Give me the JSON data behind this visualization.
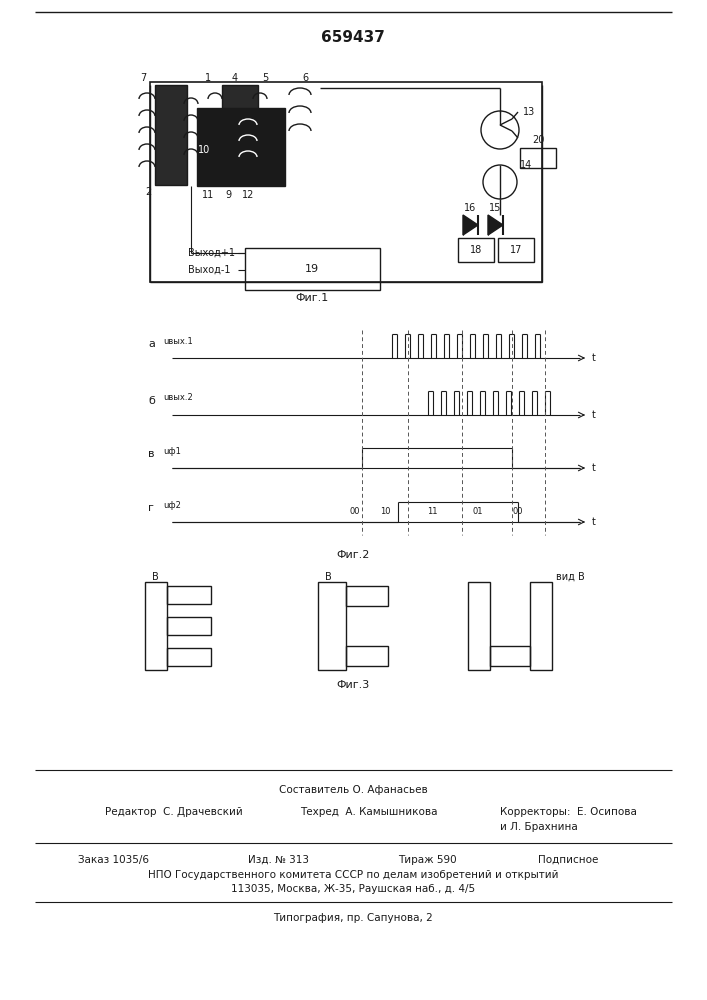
{
  "title": "659437",
  "fig1_label": "Фиг.1",
  "fig2_label": "Фиг.2",
  "fig3_label": "Фиг.3",
  "vid_label": "вид В",
  "составитель": "Составитель О. Афанасьев",
  "редактор": "Редактор  С. Драчевский",
  "техред": "Техред  А. Камышникова",
  "корректоры": "Корректоры:  Е. Осипова",
  "брахнина": "и Л. Брахнина",
  "заказ": "Заказ 1035/6",
  "изд": "Изд. № 313",
  "тираж": "Тираж 590",
  "подписное": "Подписное",
  "нпо": "НПО Государственного комитета СССР по делам изобретений и открытий",
  "адрес": "113035, Москва, Ж-35, Раушская наб., д. 4/5",
  "типография": "Типография, пр. Сапунова, 2",
  "bg_color": "#ffffff",
  "line_color": "#1a1a1a",
  "text_color": "#1a1a1a"
}
